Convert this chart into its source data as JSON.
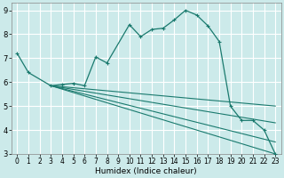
{
  "xlabel": "Humidex (Indice chaleur)",
  "background_color": "#cceaea",
  "grid_color": "#ffffff",
  "line_color": "#1a7a6e",
  "xlim": [
    -0.5,
    23.5
  ],
  "ylim": [
    3,
    9.3
  ],
  "xticks": [
    0,
    1,
    2,
    3,
    4,
    5,
    6,
    7,
    8,
    9,
    10,
    11,
    12,
    13,
    14,
    15,
    16,
    17,
    18,
    19,
    20,
    21,
    22,
    23
  ],
  "yticks": [
    3,
    4,
    5,
    6,
    7,
    8,
    9
  ],
  "lines": [
    {
      "x": [
        0,
        1,
        3,
        4,
        5,
        6,
        7,
        8,
        10,
        11,
        12,
        13,
        14,
        15,
        16,
        17,
        18,
        19,
        20,
        21,
        22,
        23
      ],
      "y": [
        7.2,
        6.4,
        5.85,
        5.9,
        5.95,
        5.85,
        7.05,
        6.8,
        8.4,
        7.9,
        8.2,
        8.25,
        8.6,
        9.0,
        8.8,
        8.35,
        7.7,
        5.0,
        4.4,
        4.4,
        4.0,
        3.0
      ],
      "marker": true
    },
    {
      "x": [
        3,
        23
      ],
      "y": [
        5.85,
        5.0
      ],
      "marker": false
    },
    {
      "x": [
        3,
        23
      ],
      "y": [
        5.85,
        4.3
      ],
      "marker": false
    },
    {
      "x": [
        3,
        23
      ],
      "y": [
        5.85,
        3.5
      ],
      "marker": false
    },
    {
      "x": [
        3,
        23
      ],
      "y": [
        5.85,
        3.0
      ],
      "marker": false
    }
  ]
}
